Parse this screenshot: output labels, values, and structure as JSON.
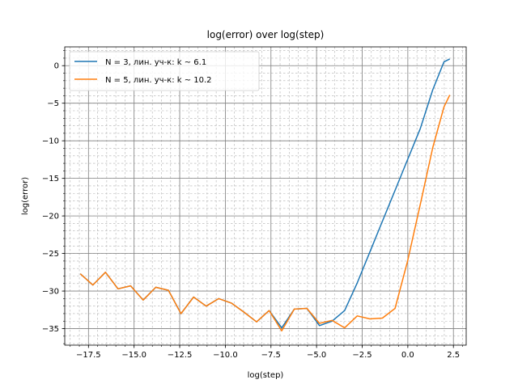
{
  "chart_data": {
    "type": "line",
    "title": "log(error) over log(step)",
    "xlabel": "log(step)",
    "ylabel": "log(error)",
    "xlim": [
      -18.8,
      3.2
    ],
    "ylim": [
      -37.2,
      2.5
    ],
    "xticks": [
      -17.5,
      -15.0,
      -12.5,
      -10.0,
      -7.5,
      -5.0,
      -2.5,
      0.0,
      2.5
    ],
    "xtick_labels": [
      "−17.5",
      "−15.0",
      "−12.5",
      "−10.0",
      "−7.5",
      "−5.0",
      "−2.5",
      "0.0",
      "2.5"
    ],
    "yticks": [
      -35,
      -30,
      -25,
      -20,
      -15,
      -10,
      -5,
      0
    ],
    "ytick_labels": [
      "−35",
      "−30",
      "−25",
      "−20",
      "−15",
      "−10",
      "−5",
      "0"
    ],
    "grid": {
      "major": true,
      "minor": true
    },
    "legend": {
      "placement": "top-left"
    },
    "series": [
      {
        "name": "N = 3, лин. уч-к: k ~ 6.1",
        "color": "#1f77b4",
        "x": [
          -17.95,
          -17.26,
          -16.57,
          -15.88,
          -15.19,
          -14.5,
          -13.81,
          -13.12,
          -12.43,
          -11.74,
          -11.05,
          -10.36,
          -9.67,
          -8.98,
          -8.29,
          -7.6,
          -6.91,
          -6.22,
          -5.53,
          -4.84,
          -4.15,
          -3.46,
          -2.77,
          -2.08,
          -1.39,
          -0.7,
          -0.01,
          0.68,
          1.37,
          1.98,
          2.3
        ],
        "y": [
          -27.7,
          -29.2,
          -27.5,
          -29.7,
          -29.3,
          -31.2,
          -29.5,
          -29.9,
          -33.0,
          -30.8,
          -32.0,
          -31.0,
          -31.6,
          -32.8,
          -34.1,
          -32.6,
          -34.9,
          -32.4,
          -32.3,
          -34.6,
          -34.0,
          -32.6,
          -28.9,
          -24.8,
          -20.7,
          -16.6,
          -12.5,
          -8.4,
          -3.2,
          0.5,
          0.9
        ]
      },
      {
        "name": "N = 5, лин. уч-к: k ~ 10.2",
        "color": "#ff7f0e",
        "x": [
          -17.95,
          -17.26,
          -16.57,
          -15.88,
          -15.19,
          -14.5,
          -13.81,
          -13.12,
          -12.43,
          -11.74,
          -11.05,
          -10.36,
          -9.67,
          -8.98,
          -8.29,
          -7.6,
          -6.91,
          -6.22,
          -5.53,
          -4.84,
          -4.15,
          -3.46,
          -2.77,
          -2.08,
          -1.39,
          -0.7,
          -0.01,
          0.68,
          1.37,
          1.98,
          2.3
        ],
        "y": [
          -27.7,
          -29.2,
          -27.5,
          -29.7,
          -29.3,
          -31.2,
          -29.5,
          -29.9,
          -33.0,
          -30.8,
          -32.0,
          -31.0,
          -31.6,
          -32.8,
          -34.1,
          -32.6,
          -35.3,
          -32.4,
          -32.3,
          -34.3,
          -33.9,
          -34.9,
          -33.3,
          -33.7,
          -33.6,
          -32.3,
          -26.0,
          -18.5,
          -10.9,
          -5.5,
          -3.9
        ]
      }
    ]
  }
}
